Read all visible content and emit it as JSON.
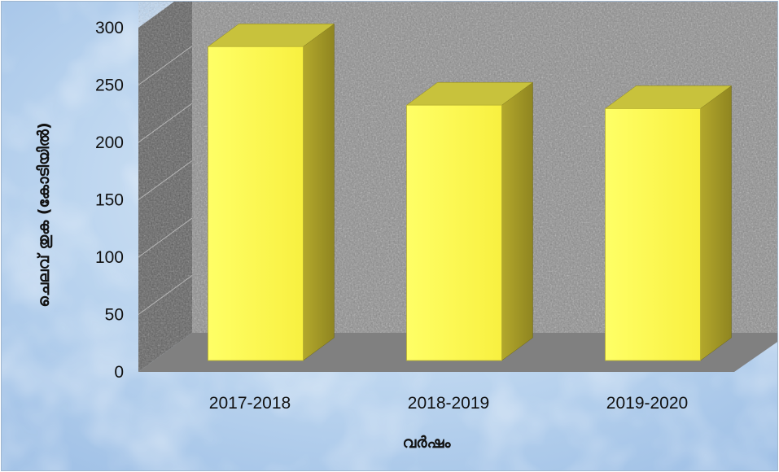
{
  "chart_data": {
    "type": "bar",
    "categories": [
      "2017-2018",
      "2018-2019",
      "2019-2020"
    ],
    "series": [
      {
        "values": [
          292,
          241,
          238
        ]
      }
    ],
    "xlabel": "വർഷം",
    "ylabel": "ചെലവ് തുക (കോടിയിൽ)",
    "ylim": [
      0,
      300
    ],
    "yticks": [
      0,
      50,
      100,
      150,
      200,
      250,
      300
    ],
    "grid": true,
    "legend": "none",
    "style": "3d-column",
    "colors": {
      "bar_front": "#ffff55",
      "bar_side": "#a89e2a",
      "bar_top": "#c8c23c",
      "floor": "#808080",
      "wall": "#8a8a8a",
      "background": "#a8c8ec"
    }
  }
}
